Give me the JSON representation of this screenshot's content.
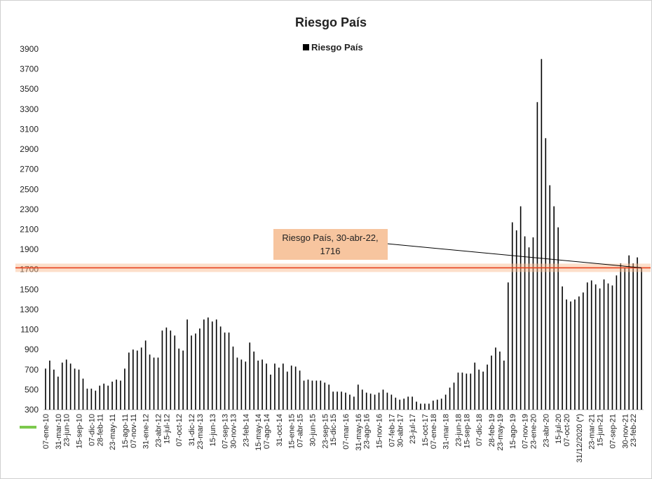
{
  "chart_data": {
    "type": "bar",
    "title": "Riesgo País",
    "color": "#000000",
    "series": [
      {
        "name": "Riesgo País",
        "color": "#000000",
        "values": [
          710,
          790,
          700,
          630,
          770,
          800,
          760,
          710,
          700,
          610,
          510,
          510,
          490,
          540,
          560,
          540,
          580,
          600,
          590,
          710,
          870,
          900,
          890,
          920,
          990,
          850,
          820,
          820,
          1090,
          1120,
          1090,
          1040,
          910,
          890,
          1200,
          1040,
          1060,
          1110,
          1200,
          1220,
          1180,
          1200,
          1130,
          1070,
          1070,
          930,
          820,
          800,
          780,
          970,
          880,
          790,
          800,
          760,
          650,
          760,
          720,
          760,
          680,
          740,
          730,
          690,
          590,
          600,
          590,
          590,
          590,
          570,
          550,
          480,
          480,
          480,
          470,
          450,
          430,
          550,
          500,
          470,
          460,
          450,
          470,
          500,
          470,
          450,
          420,
          400,
          410,
          430,
          430,
          380,
          360,
          360,
          360,
          390,
          400,
          410,
          450,
          520,
          570,
          670,
          670,
          660,
          660,
          770,
          700,
          680,
          750,
          840,
          920,
          880,
          790,
          1570,
          2170,
          2090,
          2330,
          2030,
          1920,
          2020,
          3370,
          3800,
          3010,
          2540,
          2330,
          2120,
          1530,
          1400,
          1380,
          1400,
          1430,
          1470,
          1570,
          1590,
          1550,
          1510,
          1600,
          1560,
          1540,
          1640,
          1760,
          1720,
          1840,
          1760,
          1820,
          1716
        ]
      }
    ],
    "categories": [
      "07-ene-10",
      null,
      null,
      "31-mar-10",
      null,
      "23-jun-10",
      null,
      null,
      "15-sep-10",
      null,
      null,
      "07-dic-10",
      null,
      "28-feb-11",
      null,
      null,
      "23-may-11",
      null,
      null,
      "15-ago-11",
      null,
      "07-nov-11",
      null,
      null,
      "31-ene-12",
      null,
      null,
      "23-abr-12",
      null,
      "15-jul-12",
      null,
      null,
      "07-oct-12",
      null,
      null,
      "31-dic-12",
      null,
      "23-mar-13",
      null,
      null,
      "15-jun-13",
      null,
      null,
      "07-sep-13",
      null,
      "30-nov-13",
      null,
      null,
      "23-feb-14",
      null,
      null,
      "15-may-14",
      null,
      "07-ago-14",
      null,
      null,
      "31-oct-14",
      null,
      null,
      "15-ene-15",
      null,
      "07-abr-15",
      null,
      null,
      "30-jun-15",
      null,
      null,
      "23-sep-15",
      null,
      "15-dic-15",
      null,
      null,
      "07-mar-16",
      null,
      null,
      "31-may-16",
      null,
      "23-ago-16",
      null,
      null,
      "15-nov-16",
      null,
      null,
      "07-feb-17",
      null,
      "30-abr-17",
      null,
      null,
      "23-jul-17",
      null,
      null,
      "15-oct-17",
      null,
      "07-ene-18",
      null,
      null,
      "31-mar-18",
      null,
      null,
      "23-jun-18",
      null,
      "15-sep-18",
      null,
      null,
      "07-dic-18",
      null,
      null,
      "28-feb-19",
      null,
      "23-may-19",
      null,
      null,
      "15-ago-19",
      null,
      null,
      "07-nov-19",
      null,
      "23-ene-20",
      null,
      null,
      "23-abr-20",
      null,
      null,
      "15-jul-20",
      null,
      "07-oct-20",
      null,
      null,
      "31/12/2020 (*)",
      null,
      null,
      "23-mar-21",
      null,
      "15-jun-21",
      null,
      null,
      "07-sep-21",
      null,
      null,
      "30-nov-21",
      null,
      "23-feb-22",
      null,
      null
    ],
    "ylim": [
      300,
      3900
    ],
    "yticks": [
      300,
      500,
      700,
      900,
      1100,
      1300,
      1500,
      1700,
      1900,
      2100,
      2300,
      2500,
      2700,
      2900,
      3100,
      3300,
      3500,
      3700,
      3900
    ],
    "grid": false,
    "legend": "top",
    "annotation": {
      "text": "Riesgo País, 30-abr-22,",
      "value": 1716,
      "color": "#e8401c"
    }
  }
}
